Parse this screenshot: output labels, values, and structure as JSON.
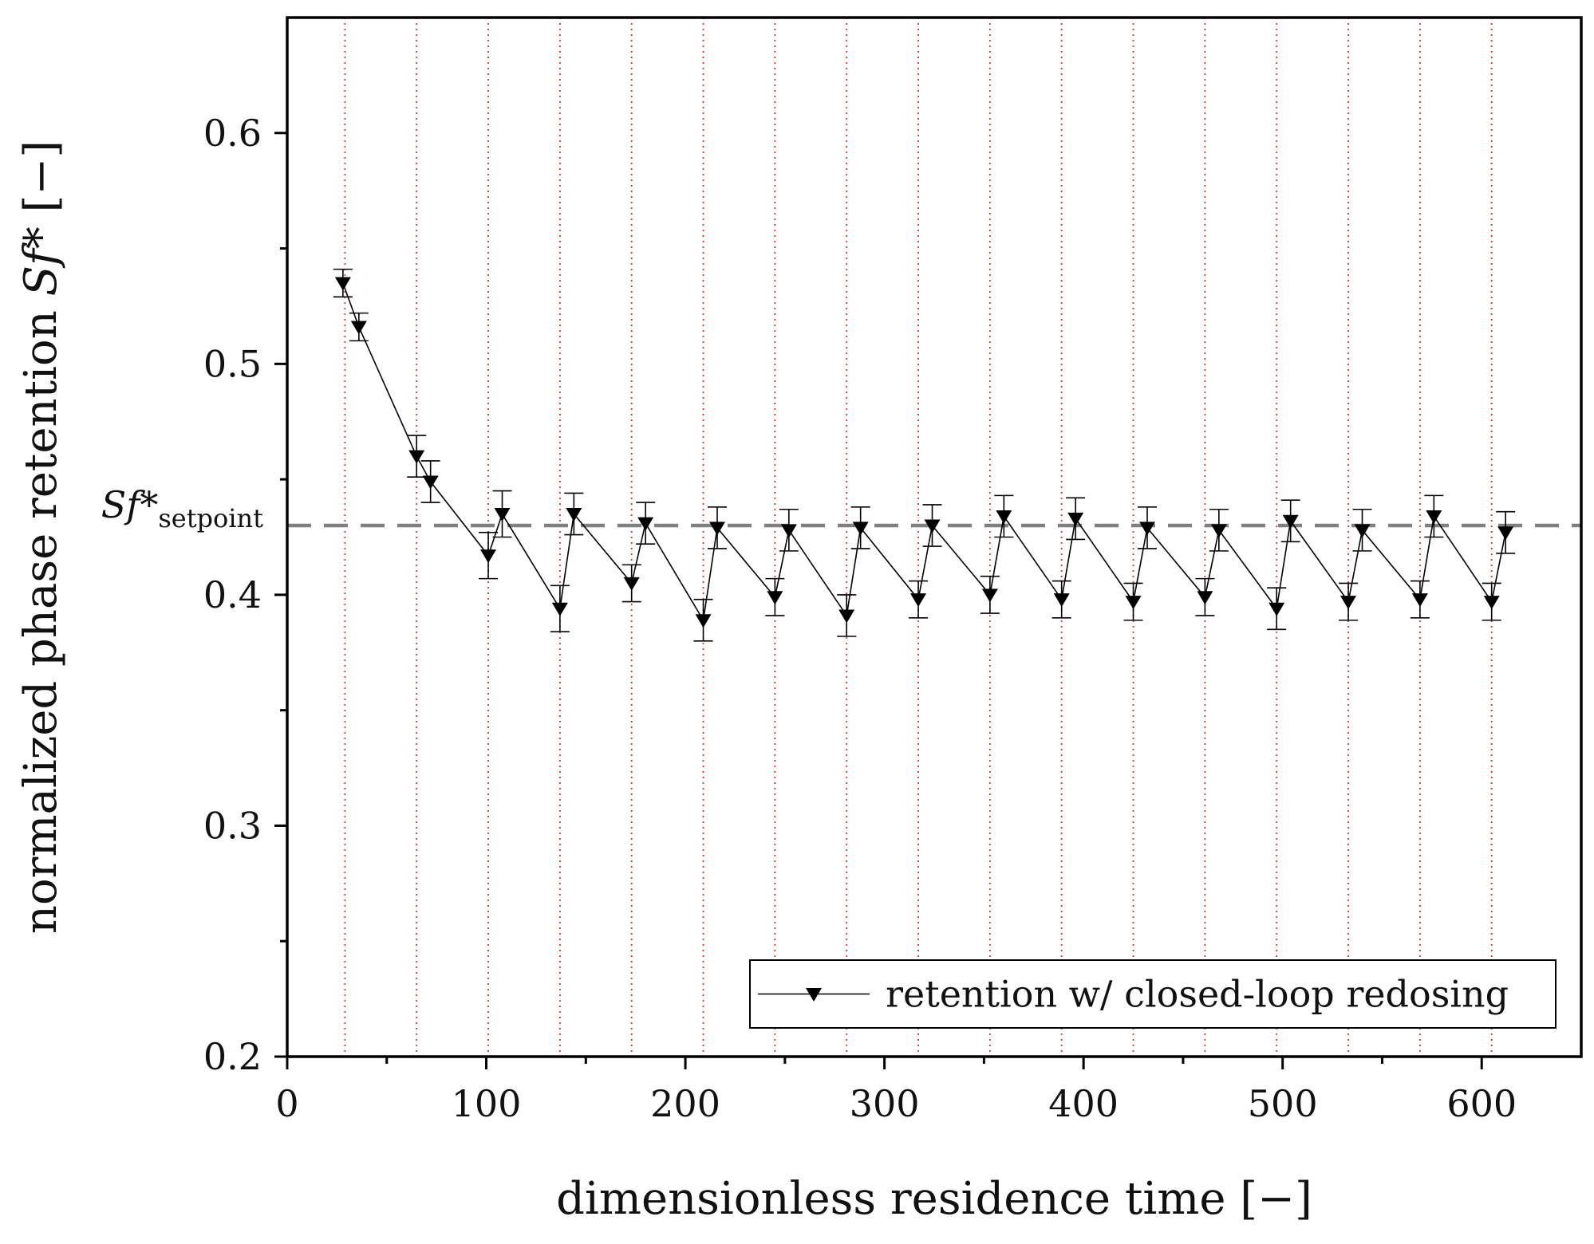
{
  "chart_data": {
    "type": "line",
    "title": "",
    "xlabel": "dimensionless residence time [−]",
    "ylabel": "normalized phase retention Sf* [−]",
    "xlim": [
      0,
      650
    ],
    "ylim": [
      0.2,
      0.65
    ],
    "x_ticks": [
      0,
      100,
      200,
      300,
      400,
      500,
      600
    ],
    "x_tick_labels": [
      "0",
      "100",
      "200",
      "300",
      "400",
      "500",
      "600"
    ],
    "y_ticks": [
      0.2,
      0.3,
      0.4,
      0.5,
      0.6
    ],
    "y_tick_labels": [
      "0.2",
      "0.3",
      "0.4",
      "0.5",
      "0.6"
    ],
    "y_minor_ticks": [
      0.25,
      0.35,
      0.45,
      0.55
    ],
    "setpoint": {
      "value": 0.43,
      "label_main": "Sf*",
      "label_sub": "setpoint",
      "color": "#808080",
      "style": "dashed"
    },
    "redosing_lines": {
      "color": "#e03030",
      "style": "dotted",
      "x": [
        29,
        65,
        101,
        137,
        173,
        209,
        245,
        281,
        317,
        353,
        389,
        425,
        461,
        497,
        533,
        569,
        605
      ]
    },
    "series": [
      {
        "name": "retention w/ closed-loop redosing",
        "color": "#000000",
        "marker": "down-triangle",
        "x": [
          28,
          36,
          65,
          72,
          101,
          108,
          137,
          144,
          173,
          180,
          209,
          216,
          245,
          252,
          281,
          288,
          317,
          324,
          353,
          360,
          389,
          396,
          425,
          432,
          461,
          468,
          497,
          504,
          533,
          540,
          569,
          576,
          605,
          612
        ],
        "y": [
          0.535,
          0.516,
          0.46,
          0.449,
          0.417,
          0.435,
          0.394,
          0.435,
          0.405,
          0.431,
          0.389,
          0.429,
          0.399,
          0.428,
          0.391,
          0.429,
          0.398,
          0.43,
          0.4,
          0.434,
          0.398,
          0.433,
          0.397,
          0.429,
          0.399,
          0.428,
          0.394,
          0.432,
          0.397,
          0.428,
          0.398,
          0.434,
          0.397,
          0.427
        ],
        "err": [
          0.006,
          0.006,
          0.009,
          0.009,
          0.01,
          0.01,
          0.01,
          0.009,
          0.008,
          0.009,
          0.009,
          0.009,
          0.008,
          0.009,
          0.009,
          0.009,
          0.008,
          0.009,
          0.008,
          0.009,
          0.008,
          0.009,
          0.008,
          0.009,
          0.008,
          0.009,
          0.009,
          0.009,
          0.008,
          0.009,
          0.008,
          0.009,
          0.008,
          0.009
        ]
      }
    ],
    "legend": {
      "position": "bottom-right",
      "entries": [
        "retention w/ closed-loop redosing"
      ]
    }
  }
}
